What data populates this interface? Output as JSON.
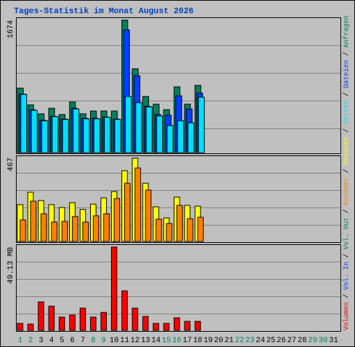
{
  "title": "Tages-Statistik im Monat August 2026",
  "legend_separator": " / ",
  "chart_data": [
    {
      "type": "bar",
      "ylim": [
        0,
        1674
      ],
      "yticks": [
        1674
      ],
      "series": [
        {
          "name": "Anfragen",
          "color": "#00805c",
          "values": [
            815,
            604,
            491,
            561,
            482,
            640,
            491,
            526,
            526,
            526,
            1674,
            1060,
            710,
            613,
            543,
            832,
            613,
            850,
            null,
            null,
            null,
            null,
            null,
            null,
            null,
            null,
            null,
            null,
            null,
            null,
            null
          ]
        },
        {
          "name": "Dateien",
          "color": "#0040ff",
          "values": [
            740,
            540,
            410,
            460,
            425,
            560,
            435,
            435,
            450,
            425,
            1551,
            972,
            587,
            482,
            473,
            718,
            552,
            753,
            null,
            null,
            null,
            null,
            null,
            null,
            null,
            null,
            null,
            null,
            null,
            null,
            null
          ]
        },
        {
          "name": "Seiten",
          "color": "#00e0ff",
          "values": [
            736,
            534,
            403,
            456,
            420,
            552,
            429,
            429,
            447,
            420,
            710,
            631,
            578,
            464,
            342,
            403,
            377,
            701,
            null,
            null,
            null,
            null,
            null,
            null,
            null,
            null,
            null,
            null,
            null,
            null,
            null
          ]
        }
      ]
    },
    {
      "type": "bar",
      "ylim": [
        0,
        467
      ],
      "yticks": [
        467
      ],
      "series": [
        {
          "name": "Besuche",
          "color": "#ffff00",
          "values": [
            205,
            274,
            228,
            205,
            189,
            216,
            178,
            208,
            243,
            278,
            394,
            463,
            324,
            193,
            131,
            247,
            201,
            197,
            null,
            null,
            null,
            null,
            null,
            null,
            null,
            null,
            null,
            null,
            null,
            null,
            null
          ]
        },
        {
          "name": "Rechner",
          "color": "#ff8000",
          "values": [
            120,
            224,
            154,
            108,
            112,
            139,
            108,
            143,
            154,
            239,
            324,
            409,
            286,
            124,
            100,
            201,
            127,
            135,
            null,
            null,
            null,
            null,
            null,
            null,
            null,
            null,
            null,
            null,
            null,
            null,
            null
          ]
        }
      ]
    },
    {
      "type": "bar",
      "ylim": [
        0,
        49.13
      ],
      "yticks": [
        {
          "value": 49.13,
          "label": "49.13 MB"
        }
      ],
      "categories": [
        "1",
        "2",
        "3",
        "4",
        "5",
        "6",
        "7",
        "8",
        "9",
        "10",
        "11",
        "12",
        "13",
        "14",
        "15",
        "16",
        "17",
        "18",
        "19",
        "20",
        "21",
        "22",
        "23",
        "24",
        "25",
        "26",
        "27",
        "28",
        "29",
        "30",
        "31"
      ],
      "category_colors": [
        "#00805c",
        "#00805c",
        "#000000",
        "#000000",
        "#000000",
        "#000000",
        "#000000",
        "#00805c",
        "#00805c",
        "#000000",
        "#000000",
        "#000000",
        "#000000",
        "#000000",
        "#00805c",
        "#00805c",
        "#000000",
        "#000000",
        "#000000",
        "#000000",
        "#000000",
        "#00805c",
        "#00805c",
        "#000000",
        "#000000",
        "#000000",
        "#000000",
        "#000000",
        "#00805c",
        "#00805c",
        "#000000"
      ],
      "series": [
        {
          "name": "Vol. Out",
          "color": "#00805c",
          "values": [
            null,
            null,
            null,
            null,
            null,
            null,
            null,
            null,
            null,
            null,
            null,
            null,
            null,
            null,
            null,
            null,
            null,
            null,
            null,
            null,
            null,
            null,
            null,
            null,
            null,
            null,
            null,
            null,
            null,
            null,
            null
          ]
        },
        {
          "name": "Vol. In",
          "color": "#0040ff",
          "values": [
            null,
            null,
            null,
            null,
            null,
            null,
            null,
            null,
            null,
            null,
            null,
            null,
            null,
            null,
            null,
            null,
            null,
            null,
            null,
            null,
            null,
            null,
            null,
            null,
            null,
            null,
            null,
            null,
            null,
            null,
            null
          ]
        },
        {
          "name": "Volumen",
          "color": "#ff0000",
          "values": [
            4.1,
            3.7,
            16.8,
            14.3,
            7.8,
            9.0,
            13.1,
            7.8,
            10.6,
            49.13,
            23.3,
            13.1,
            8.2,
            4.1,
            4.1,
            7.4,
            5.3,
            5.3,
            null,
            null,
            null,
            null,
            null,
            null,
            null,
            null,
            null,
            null,
            null,
            null,
            null
          ]
        }
      ]
    }
  ]
}
